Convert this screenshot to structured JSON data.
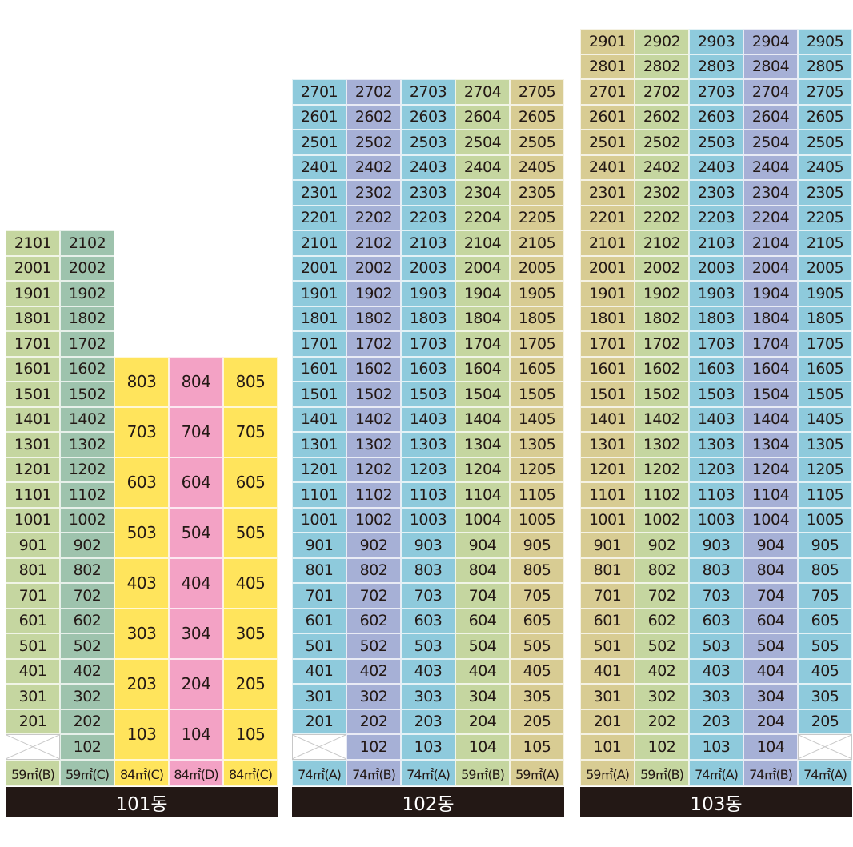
{
  "colors": {
    "green": "#c5d6a0",
    "teal": "#9ec3ad",
    "yellow": "#ffe45c",
    "pink": "#f3a2c5",
    "blue": "#8ecadc",
    "lavender": "#a6b0d6",
    "khaki": "#d8cc93",
    "label_bg": "#231815"
  },
  "buildings": [
    {
      "label": "101동",
      "areas": [
        "59㎡(B)",
        "59㎡(C)",
        "84㎡(C)",
        "84㎡(D)",
        "84㎡(C)"
      ],
      "columns": [
        {
          "top_floor": 21,
          "bottom_floor": 2,
          "empty_floor1": true,
          "color": "green"
        },
        {
          "top_floor": 21,
          "bottom_floor": 1,
          "color": "teal"
        }
      ],
      "maisonette": {
        "top_floor": 8,
        "bottom_floor": 1,
        "columns": [
          {
            "line": 3,
            "color": "yellow"
          },
          {
            "line": 4,
            "color": "pink"
          },
          {
            "line": 5,
            "color": "yellow"
          }
        ]
      }
    },
    {
      "label": "102동",
      "areas": [
        "74㎡(A)",
        "74㎡(B)",
        "74㎡(A)",
        "59㎡(B)",
        "59㎡(A)"
      ],
      "columns": [
        {
          "top_floor": 27,
          "bottom_floor": 2,
          "empty_floor1": true,
          "color": "blue"
        },
        {
          "top_floor": 27,
          "bottom_floor": 1,
          "color": "lavender"
        },
        {
          "top_floor": 27,
          "bottom_floor": 1,
          "color": "blue"
        },
        {
          "top_floor": 27,
          "bottom_floor": 1,
          "color": "green"
        },
        {
          "top_floor": 27,
          "bottom_floor": 1,
          "color": "khaki"
        }
      ]
    },
    {
      "label": "103동",
      "areas": [
        "59㎡(A)",
        "59㎡(B)",
        "74㎡(A)",
        "74㎡(B)",
        "74㎡(A)"
      ],
      "columns": [
        {
          "top_floor": 29,
          "bottom_floor": 1,
          "color": "khaki"
        },
        {
          "top_floor": 29,
          "bottom_floor": 1,
          "color": "green"
        },
        {
          "top_floor": 29,
          "bottom_floor": 1,
          "color": "blue"
        },
        {
          "top_floor": 29,
          "bottom_floor": 1,
          "color": "lavender"
        },
        {
          "top_floor": 29,
          "bottom_floor": 2,
          "empty_floor1": true,
          "color": "blue"
        }
      ]
    }
  ]
}
